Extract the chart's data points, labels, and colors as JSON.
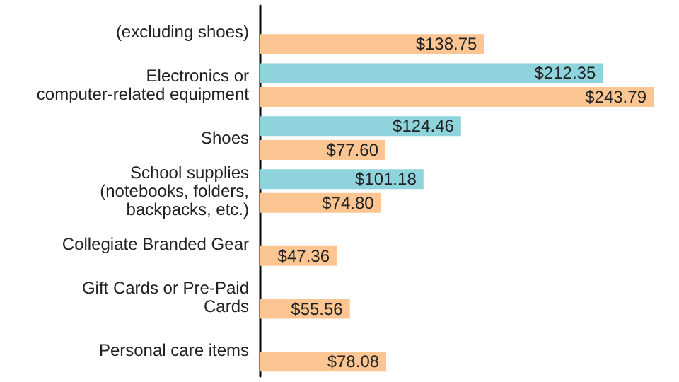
{
  "chart_data": {
    "type": "bar",
    "orientation": "horizontal",
    "categories": [
      "(excluding shoes)",
      "Electronics or computer-related equipment",
      "Shoes",
      "School supplies (notebooks, folders, backpacks, etc.)",
      "Collegiate Branded Gear",
      "Gift Cards or Pre-Paid Cards",
      "Personal care items"
    ],
    "series": [
      {
        "color": "#8fd3dc",
        "values": [
          null,
          212.35,
          124.46,
          101.18,
          null,
          null,
          null
        ],
        "value_labels": [
          null,
          "$212.35",
          "$124.46",
          "$101.18",
          null,
          null,
          null
        ]
      },
      {
        "color": "#fdc592",
        "values": [
          138.75,
          243.79,
          77.6,
          74.8,
          47.36,
          55.56,
          78.08
        ],
        "value_labels": [
          "$138.75",
          "$243.79",
          "$77.60",
          "$74.80",
          "$47.36",
          "$55.56",
          "$78.08"
        ]
      }
    ]
  }
}
